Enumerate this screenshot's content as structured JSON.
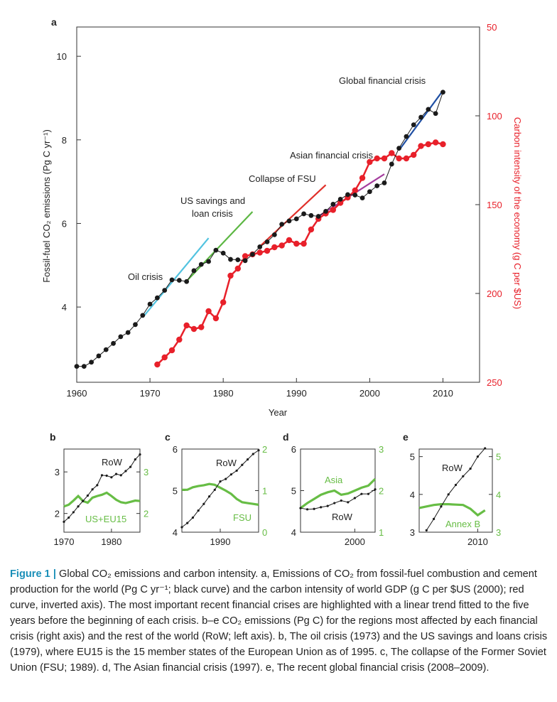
{
  "colors": {
    "black_curve": "#1a1a1a",
    "red_curve": "#e8202a",
    "green_regional": "#67bd45",
    "oil_trend": "#52c3e0",
    "us_savings_trend": "#5cb743",
    "fsu_trend": "#e0302a",
    "asian_trend": "#a53d9e",
    "global_trend": "#1f4fa3",
    "caption_accent": "#1a8fb8"
  },
  "chart_data": [
    {
      "panel": "a",
      "type": "line",
      "xlabel": "Year",
      "xlim": [
        1960,
        2015
      ],
      "xticks": [
        1960,
        1970,
        1980,
        1990,
        2000,
        2010
      ],
      "ylabel_left": "Fossil-fuel CO₂ emissions (Pg C yr⁻¹)",
      "ylim_left": [
        2.2,
        10.7
      ],
      "yticks_left": [
        4,
        6,
        8,
        10
      ],
      "ylabel_right": "Carbon intensity of the economy (g C per $US)",
      "ylim_right": [
        250,
        50
      ],
      "yticks_right": [
        50,
        100,
        150,
        200,
        250
      ],
      "right_axis_inverted": true,
      "series": [
        {
          "axis": "left",
          "color": "#1a1a1a",
          "x": [
            1960,
            1961,
            1962,
            1963,
            1964,
            1965,
            1966,
            1967,
            1968,
            1969,
            1970,
            1971,
            1972,
            1973,
            1974,
            1975,
            1976,
            1977,
            1978,
            1979,
            1980,
            1981,
            1982,
            1983,
            1984,
            1985,
            1986,
            1987,
            1988,
            1989,
            1990,
            1991,
            1992,
            1993,
            1994,
            1995,
            1996,
            1997,
            1998,
            1999,
            2000,
            2001,
            2002,
            2003,
            2004,
            2005,
            2006,
            2007,
            2008,
            2009,
            2010
          ],
          "values": [
            2.58,
            2.58,
            2.68,
            2.83,
            2.98,
            3.13,
            3.29,
            3.39,
            3.58,
            3.8,
            4.07,
            4.22,
            4.4,
            4.65,
            4.64,
            4.61,
            4.87,
            5.02,
            5.09,
            5.36,
            5.29,
            5.14,
            5.13,
            5.11,
            5.26,
            5.44,
            5.56,
            5.73,
            5.98,
            6.06,
            6.11,
            6.23,
            6.19,
            6.17,
            6.29,
            6.46,
            6.58,
            6.69,
            6.68,
            6.61,
            6.76,
            6.9,
            6.97,
            7.42,
            7.8,
            8.08,
            8.36,
            8.54,
            8.73,
            8.63,
            9.14
          ]
        },
        {
          "axis": "right",
          "color": "#e8202a",
          "x": [
            1971,
            1972,
            1973,
            1974,
            1975,
            1976,
            1977,
            1978,
            1979,
            1980,
            1981,
            1982,
            1983,
            1984,
            1985,
            1986,
            1987,
            1988,
            1989,
            1990,
            1991,
            1992,
            1993,
            1994,
            1995,
            1996,
            1997,
            1998,
            1999,
            2000,
            2001,
            2002,
            2003,
            2004,
            2005,
            2006,
            2007,
            2008,
            2009,
            2010
          ],
          "values": [
            240,
            236,
            232,
            226,
            218,
            220,
            219,
            210,
            214,
            205,
            190,
            186,
            179,
            178,
            177,
            176,
            174,
            173,
            170,
            172,
            172,
            164,
            158,
            155,
            153,
            149,
            146,
            142,
            135,
            126,
            124,
            124,
            121,
            124,
            124,
            122,
            117,
            116,
            115,
            116
          ]
        }
      ],
      "trends": [
        {
          "name": "Oil crisis",
          "color": "#52c3e0",
          "x": [
            1969,
            1978
          ],
          "y": [
            3.75,
            5.65
          ]
        },
        {
          "name": "US savings and loan crisis",
          "color": "#5cb743",
          "x": [
            1975,
            1984
          ],
          "y": [
            4.62,
            6.28
          ]
        },
        {
          "name": "Collapse of FSU",
          "color": "#e0302a",
          "x": [
            1985,
            1994
          ],
          "y": [
            5.45,
            6.92
          ]
        },
        {
          "name": "Asian financial crisis",
          "color": "#a53d9e",
          "x": [
            1993,
            2002
          ],
          "y": [
            6.17,
            7.18
          ]
        },
        {
          "name": "Global financial crisis",
          "color": "#1f4fa3",
          "x": [
            2004,
            2010
          ],
          "y": [
            7.75,
            9.18
          ]
        }
      ],
      "annotations": {
        "oil": "Oil crisis",
        "us_line1": "US savings and",
        "us_line2": "loan crisis",
        "fsu": "Collapse of FSU",
        "asian": "Asian financial crisis",
        "global": "Global financial crisis"
      }
    },
    {
      "panel": "b",
      "type": "line",
      "xlim": [
        1970,
        1986
      ],
      "xticks": [
        1970,
        1980
      ],
      "ylim_left": [
        1.55,
        3.55
      ],
      "yticks_left": [
        2,
        3
      ],
      "ylim_right": [
        1.55,
        3.55
      ],
      "yticks_right": [
        2,
        3
      ],
      "series": [
        {
          "name": "RoW",
          "axis": "left",
          "color": "#1a1a1a",
          "x": [
            1970,
            1971,
            1972,
            1973,
            1974,
            1975,
            1976,
            1977,
            1978,
            1979,
            1980,
            1981,
            1982,
            1983,
            1984,
            1985,
            1986
          ],
          "values": [
            1.8,
            1.9,
            2.03,
            2.17,
            2.3,
            2.43,
            2.58,
            2.68,
            2.92,
            2.91,
            2.87,
            2.95,
            2.92,
            3.02,
            3.12,
            3.3,
            3.42
          ]
        },
        {
          "name": "US+EU15",
          "axis": "right",
          "color": "#67bd45",
          "x": [
            1970,
            1971,
            1972,
            1973,
            1974,
            1975,
            1976,
            1977,
            1978,
            1979,
            1980,
            1981,
            1982,
            1983,
            1984,
            1985,
            1986
          ],
          "values": [
            2.17,
            2.21,
            2.31,
            2.42,
            2.3,
            2.26,
            2.38,
            2.42,
            2.45,
            2.5,
            2.42,
            2.33,
            2.27,
            2.25,
            2.28,
            2.31,
            2.3
          ]
        }
      ]
    },
    {
      "panel": "c",
      "type": "line",
      "xlim": [
        1983,
        1997
      ],
      "xticks": [
        1990
      ],
      "ylim_left": [
        4,
        6
      ],
      "yticks_left": [
        4,
        5,
        6
      ],
      "ylim_right": [
        0,
        2
      ],
      "yticks_right": [
        0,
        1,
        2
      ],
      "series": [
        {
          "name": "RoW",
          "axis": "left",
          "color": "#1a1a1a",
          "x": [
            1983,
            1984,
            1985,
            1986,
            1987,
            1988,
            1989,
            1990,
            1991,
            1992,
            1993,
            1994,
            1995,
            1996,
            1997
          ],
          "values": [
            4.12,
            4.22,
            4.35,
            4.52,
            4.68,
            4.86,
            5.02,
            5.22,
            5.28,
            5.39,
            5.48,
            5.62,
            5.75,
            5.88,
            5.97
          ]
        },
        {
          "name": "FSU",
          "axis": "right",
          "color": "#67bd45",
          "x": [
            1983,
            1984,
            1985,
            1986,
            1987,
            1988,
            1989,
            1990,
            1991,
            1992,
            1993,
            1994,
            1995,
            1996,
            1997
          ],
          "values": [
            1.02,
            1.02,
            1.08,
            1.11,
            1.13,
            1.16,
            1.14,
            1.07,
            1.0,
            0.92,
            0.8,
            0.72,
            0.7,
            0.68,
            0.66
          ]
        }
      ]
    },
    {
      "panel": "d",
      "type": "line",
      "xlim": [
        1992,
        2003
      ],
      "xticks": [
        2000
      ],
      "ylim_left": [
        4,
        6
      ],
      "yticks_left": [
        4,
        5,
        6
      ],
      "ylim_right": [
        1,
        3
      ],
      "yticks_right": [
        1,
        2,
        3
      ],
      "series": [
        {
          "name": "RoW",
          "axis": "left",
          "color": "#1a1a1a",
          "x": [
            1992,
            1993,
            1994,
            1995,
            1996,
            1997,
            1998,
            1999,
            2000,
            2001,
            2002,
            2003
          ],
          "values": [
            4.58,
            4.55,
            4.56,
            4.6,
            4.63,
            4.7,
            4.76,
            4.72,
            4.82,
            4.92,
            4.92,
            5.03
          ]
        },
        {
          "name": "Asia",
          "axis": "right",
          "color": "#67bd45",
          "x": [
            1992,
            1993,
            1994,
            1995,
            1996,
            1997,
            1998,
            1999,
            2000,
            2001,
            2002,
            2003
          ],
          "values": [
            1.58,
            1.7,
            1.8,
            1.9,
            1.96,
            2.0,
            1.9,
            1.93,
            2.0,
            2.07,
            2.12,
            2.28
          ]
        }
      ]
    },
    {
      "panel": "e",
      "type": "line",
      "xlim": [
        2002,
        2012
      ],
      "xticks": [
        2010
      ],
      "ylim_left": [
        3,
        5.2
      ],
      "yticks_left": [
        3,
        4,
        5
      ],
      "ylim_right": [
        3,
        5.2
      ],
      "yticks_right": [
        3,
        4,
        5
      ],
      "series": [
        {
          "name": "RoW",
          "axis": "left",
          "color": "#1a1a1a",
          "x": [
            2003,
            2004,
            2005,
            2006,
            2007,
            2008,
            2009,
            2010,
            2011
          ],
          "values": [
            3.05,
            3.35,
            3.68,
            4.0,
            4.25,
            4.48,
            4.68,
            5.0,
            5.22
          ]
        },
        {
          "name": "Annex B",
          "axis": "right",
          "color": "#67bd45",
          "x": [
            2002,
            2003,
            2004,
            2005,
            2006,
            2007,
            2008,
            2009,
            2010,
            2011
          ],
          "values": [
            3.64,
            3.68,
            3.72,
            3.74,
            3.74,
            3.73,
            3.72,
            3.62,
            3.45,
            3.58
          ]
        }
      ]
    }
  ],
  "panel_labels": {
    "a": "a",
    "b": "b",
    "c": "c",
    "d": "d",
    "e": "e"
  },
  "caption": {
    "label": "Figure 1 |",
    "text": "Global CO₂ emissions and carbon intensity. a, Emissions of CO₂ from fossil-fuel combustion and cement production for the world (Pg C yr⁻¹; black curve) and the carbon intensity of world GDP (g C per $US (2000); red curve, inverted axis). The most important recent financial crises are highlighted with a linear trend fitted to the five years before the beginning of each crisis. b–e CO₂ emissions (Pg C) for the regions most affected by each financial crisis (right axis) and the rest of the world (RoW; left axis). b, The oil crisis (1973) and the US savings and loans crisis (1979), where EU15 is the 15 member states of the European Union as of 1995. c, The collapse of the Former Soviet Union (FSU; 1989). d, The Asian financial crisis (1997). e, The recent global financial crisis (2008–2009)."
  }
}
